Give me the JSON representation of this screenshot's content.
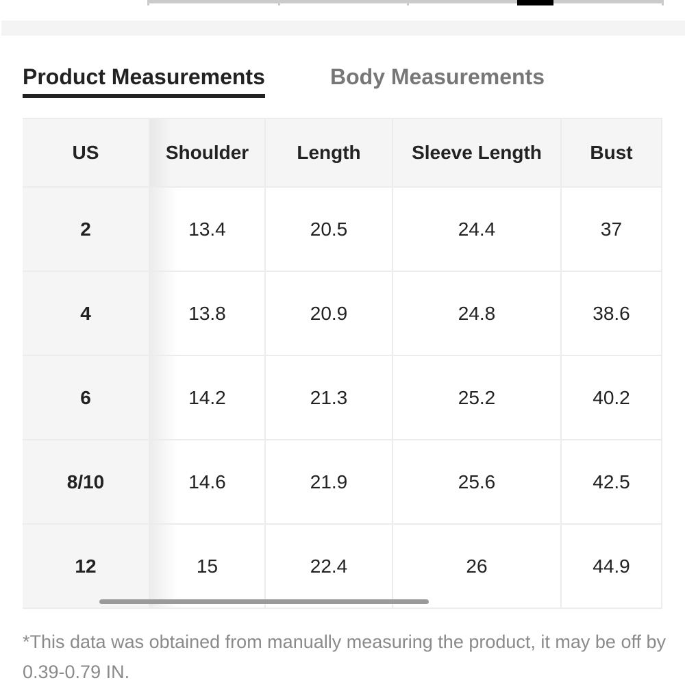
{
  "tabs": {
    "product": "Product Measurements",
    "body": "Body Measurements"
  },
  "table": {
    "headers": [
      "US",
      "Shoulder",
      "Length",
      "Sleeve Length",
      "Bust"
    ],
    "rows": [
      [
        "2",
        "13.4",
        "20.5",
        "24.4",
        "37"
      ],
      [
        "4",
        "13.8",
        "20.9",
        "24.8",
        "38.6"
      ],
      [
        "6",
        "14.2",
        "21.3",
        "25.2",
        "40.2"
      ],
      [
        "8/10",
        "14.6",
        "21.9",
        "25.6",
        "42.5"
      ],
      [
        "12",
        "15",
        "22.4",
        "26",
        "44.9"
      ]
    ]
  },
  "note": "*This data was obtained from manually measuring the product, it may be off by 0.39-0.79 IN."
}
